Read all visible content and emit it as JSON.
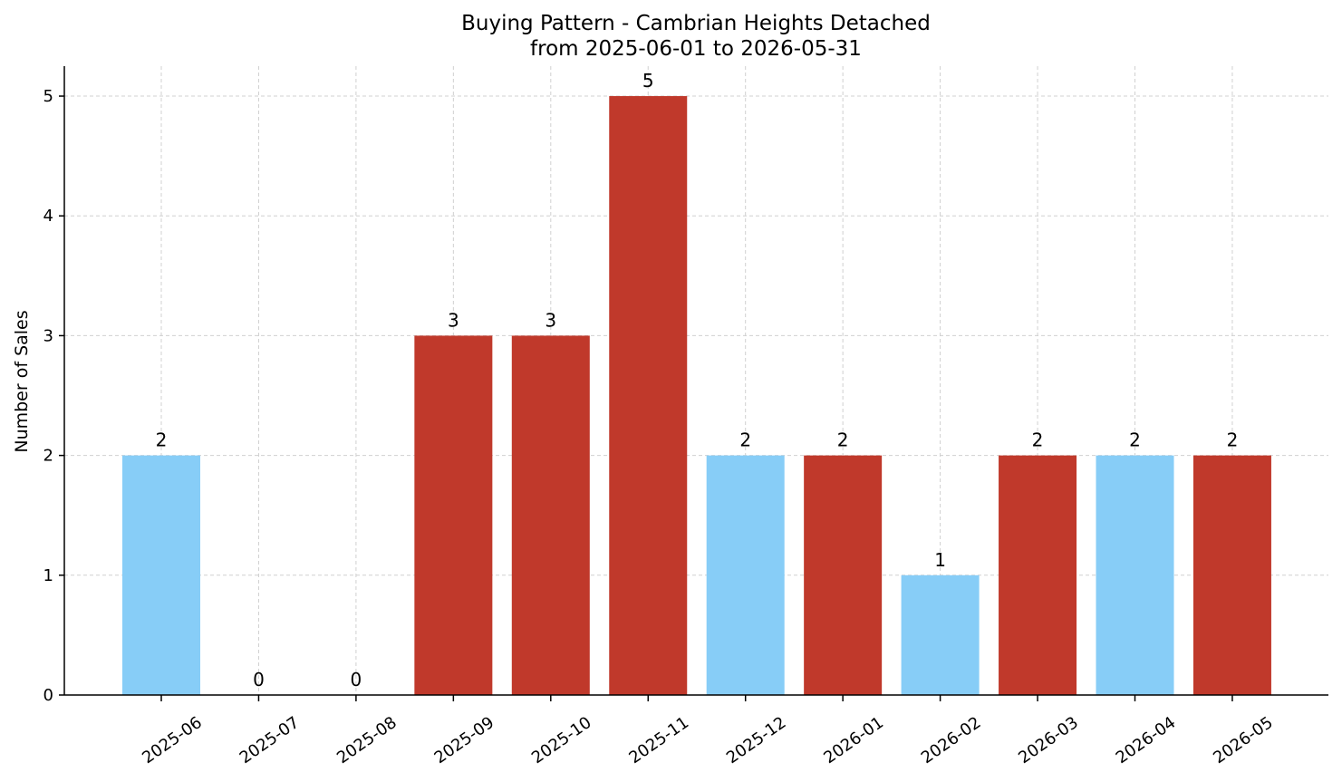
{
  "chart_data": {
    "type": "bar",
    "title": "Buying Pattern - Cambrian Heights Detached",
    "subtitle": "from 2025-06-01 to 2026-05-31",
    "xlabel": "",
    "ylabel": "Number of Sales",
    "ylim": [
      0,
      5.25
    ],
    "yticks": [
      0,
      1,
      2,
      3,
      4,
      5
    ],
    "grid": true,
    "categories": [
      "2025-06",
      "2025-07",
      "2025-08",
      "2025-09",
      "2025-10",
      "2025-11",
      "2025-12",
      "2026-01",
      "2026-02",
      "2026-03",
      "2026-04",
      "2026-05"
    ],
    "values": [
      2,
      0,
      0,
      3,
      3,
      5,
      2,
      2,
      1,
      2,
      2,
      2
    ],
    "bar_colors": [
      "#87cdf7",
      "#87cdf7",
      "#87cdf7",
      "#c0392b",
      "#c0392b",
      "#c0392b",
      "#87cdf7",
      "#c0392b",
      "#87cdf7",
      "#c0392b",
      "#87cdf7",
      "#c0392b"
    ]
  }
}
